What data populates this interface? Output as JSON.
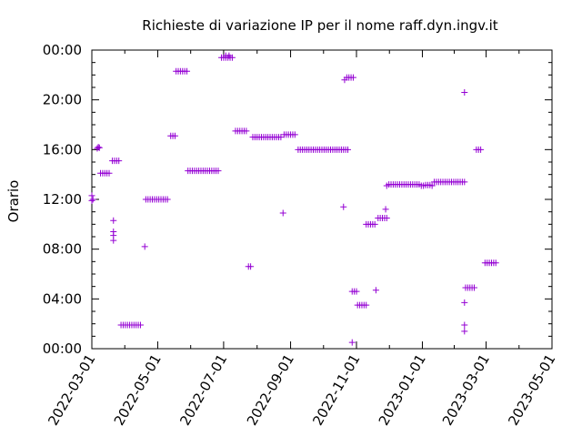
{
  "chart_data": {
    "type": "scatter",
    "title": "Richieste di variazione IP per il nome raff.dyn.ingv.it",
    "xlabel": "",
    "ylabel": "Orario",
    "x_axis_type": "date",
    "xlim": [
      "2022-03-01",
      "2023-05-01"
    ],
    "ylim": [
      0,
      24
    ],
    "x_ticks": [
      "2022-03-01",
      "2022-05-01",
      "2022-07-01",
      "2022-09-01",
      "2022-11-01",
      "2023-01-01",
      "2023-03-01",
      "2023-05-01"
    ],
    "y_ticks": [
      {
        "value": 0,
        "label": "00:00"
      },
      {
        "value": 4,
        "label": "04:00"
      },
      {
        "value": 8,
        "label": "08:00"
      },
      {
        "value": 12,
        "label": "12:00"
      },
      {
        "value": 16,
        "label": "16:00"
      },
      {
        "value": 20,
        "label": "20:00"
      },
      {
        "value": 24,
        "label": "00:00"
      }
    ],
    "minor_y_step": 1,
    "grid": false,
    "marker": "plus",
    "color": "#9400d3",
    "points": [
      {
        "x": "2022-03-01",
        "y": 12.3
      },
      {
        "x": "2022-03-01",
        "y": 11.9
      },
      {
        "x": "2022-03-02",
        "y": 12.0
      },
      {
        "x": "2022-03-06",
        "y": 16.1
      },
      {
        "x": "2022-03-07",
        "y": 16.2
      },
      {
        "x": "2022-03-08",
        "y": 16.15
      },
      {
        "x": "2022-03-09",
        "y": 14.1
      },
      {
        "x": "2022-03-11",
        "y": 14.1
      },
      {
        "x": "2022-03-13",
        "y": 14.1
      },
      {
        "x": "2022-03-15",
        "y": 14.1
      },
      {
        "x": "2022-03-17",
        "y": 14.1
      },
      {
        "x": "2022-03-20",
        "y": 15.1
      },
      {
        "x": "2022-03-22",
        "y": 15.1
      },
      {
        "x": "2022-03-24",
        "y": 15.1
      },
      {
        "x": "2022-03-26",
        "y": 15.1
      },
      {
        "x": "2022-03-21",
        "y": 10.3
      },
      {
        "x": "2022-03-21",
        "y": 9.4
      },
      {
        "x": "2022-03-21",
        "y": 9.1
      },
      {
        "x": "2022-03-21",
        "y": 8.7
      },
      {
        "x": "2022-03-28",
        "y": 1.9
      },
      {
        "x": "2022-03-30",
        "y": 1.9
      },
      {
        "x": "2022-04-01",
        "y": 1.9
      },
      {
        "x": "2022-04-03",
        "y": 1.9
      },
      {
        "x": "2022-04-05",
        "y": 1.9
      },
      {
        "x": "2022-04-07",
        "y": 1.9
      },
      {
        "x": "2022-04-09",
        "y": 1.9
      },
      {
        "x": "2022-04-11",
        "y": 1.9
      },
      {
        "x": "2022-04-13",
        "y": 1.9
      },
      {
        "x": "2022-04-15",
        "y": 1.9
      },
      {
        "x": "2022-04-19",
        "y": 8.2
      },
      {
        "x": "2022-04-20",
        "y": 12.0
      },
      {
        "x": "2022-04-22",
        "y": 12.0
      },
      {
        "x": "2022-04-24",
        "y": 12.0
      },
      {
        "x": "2022-04-26",
        "y": 12.0
      },
      {
        "x": "2022-04-28",
        "y": 12.0
      },
      {
        "x": "2022-04-30",
        "y": 12.0
      },
      {
        "x": "2022-05-02",
        "y": 12.0
      },
      {
        "x": "2022-05-04",
        "y": 12.0
      },
      {
        "x": "2022-05-06",
        "y": 12.0
      },
      {
        "x": "2022-05-08",
        "y": 12.0
      },
      {
        "x": "2022-05-10",
        "y": 12.0
      },
      {
        "x": "2022-05-13",
        "y": 17.1
      },
      {
        "x": "2022-05-15",
        "y": 17.1
      },
      {
        "x": "2022-05-17",
        "y": 17.1
      },
      {
        "x": "2022-05-18",
        "y": 22.3
      },
      {
        "x": "2022-05-20",
        "y": 22.3
      },
      {
        "x": "2022-05-22",
        "y": 22.3
      },
      {
        "x": "2022-05-24",
        "y": 22.3
      },
      {
        "x": "2022-05-26",
        "y": 22.3
      },
      {
        "x": "2022-05-28",
        "y": 22.3
      },
      {
        "x": "2022-05-29",
        "y": 14.3
      },
      {
        "x": "2022-05-31",
        "y": 14.3
      },
      {
        "x": "2022-06-02",
        "y": 14.3
      },
      {
        "x": "2022-06-04",
        "y": 14.3
      },
      {
        "x": "2022-06-06",
        "y": 14.3
      },
      {
        "x": "2022-06-08",
        "y": 14.3
      },
      {
        "x": "2022-06-10",
        "y": 14.3
      },
      {
        "x": "2022-06-12",
        "y": 14.3
      },
      {
        "x": "2022-06-14",
        "y": 14.3
      },
      {
        "x": "2022-06-16",
        "y": 14.3
      },
      {
        "x": "2022-06-18",
        "y": 14.3
      },
      {
        "x": "2022-06-20",
        "y": 14.3
      },
      {
        "x": "2022-06-22",
        "y": 14.3
      },
      {
        "x": "2022-06-24",
        "y": 14.3
      },
      {
        "x": "2022-06-26",
        "y": 14.3
      },
      {
        "x": "2022-06-29",
        "y": 23.4
      },
      {
        "x": "2022-07-01",
        "y": 23.4
      },
      {
        "x": "2022-07-03",
        "y": 23.4
      },
      {
        "x": "2022-07-05",
        "y": 23.4
      },
      {
        "x": "2022-07-07",
        "y": 23.4
      },
      {
        "x": "2022-07-09",
        "y": 23.4
      },
      {
        "x": "2022-07-03",
        "y": 23.55
      },
      {
        "x": "2022-07-06",
        "y": 23.55
      },
      {
        "x": "2022-07-12",
        "y": 17.5
      },
      {
        "x": "2022-07-14",
        "y": 17.5
      },
      {
        "x": "2022-07-16",
        "y": 17.5
      },
      {
        "x": "2022-07-18",
        "y": 17.5
      },
      {
        "x": "2022-07-20",
        "y": 17.5
      },
      {
        "x": "2022-07-22",
        "y": 17.5
      },
      {
        "x": "2022-07-24",
        "y": 6.6
      },
      {
        "x": "2022-07-26",
        "y": 6.6
      },
      {
        "x": "2022-07-28",
        "y": 17.0
      },
      {
        "x": "2022-07-30",
        "y": 17.0
      },
      {
        "x": "2022-08-01",
        "y": 17.0
      },
      {
        "x": "2022-08-03",
        "y": 17.0
      },
      {
        "x": "2022-08-05",
        "y": 17.0
      },
      {
        "x": "2022-08-07",
        "y": 17.0
      },
      {
        "x": "2022-08-09",
        "y": 17.0
      },
      {
        "x": "2022-08-11",
        "y": 17.0
      },
      {
        "x": "2022-08-13",
        "y": 17.0
      },
      {
        "x": "2022-08-15",
        "y": 17.0
      },
      {
        "x": "2022-08-17",
        "y": 17.0
      },
      {
        "x": "2022-08-19",
        "y": 17.0
      },
      {
        "x": "2022-08-21",
        "y": 17.0
      },
      {
        "x": "2022-08-23",
        "y": 17.0
      },
      {
        "x": "2022-08-25",
        "y": 10.9
      },
      {
        "x": "2022-08-26",
        "y": 17.2
      },
      {
        "x": "2022-08-28",
        "y": 17.2
      },
      {
        "x": "2022-08-30",
        "y": 17.2
      },
      {
        "x": "2022-09-01",
        "y": 17.2
      },
      {
        "x": "2022-09-03",
        "y": 17.2
      },
      {
        "x": "2022-09-05",
        "y": 17.2
      },
      {
        "x": "2022-09-08",
        "y": 16.0
      },
      {
        "x": "2022-09-10",
        "y": 16.0
      },
      {
        "x": "2022-09-12",
        "y": 16.0
      },
      {
        "x": "2022-09-14",
        "y": 16.0
      },
      {
        "x": "2022-09-16",
        "y": 16.0
      },
      {
        "x": "2022-09-18",
        "y": 16.0
      },
      {
        "x": "2022-09-20",
        "y": 16.0
      },
      {
        "x": "2022-09-22",
        "y": 16.0
      },
      {
        "x": "2022-09-24",
        "y": 16.0
      },
      {
        "x": "2022-09-26",
        "y": 16.0
      },
      {
        "x": "2022-09-28",
        "y": 16.0
      },
      {
        "x": "2022-09-30",
        "y": 16.0
      },
      {
        "x": "2022-10-02",
        "y": 16.0
      },
      {
        "x": "2022-10-04",
        "y": 16.0
      },
      {
        "x": "2022-10-06",
        "y": 16.0
      },
      {
        "x": "2022-10-08",
        "y": 16.0
      },
      {
        "x": "2022-10-10",
        "y": 16.0
      },
      {
        "x": "2022-10-12",
        "y": 16.0
      },
      {
        "x": "2022-10-14",
        "y": 16.0
      },
      {
        "x": "2022-10-16",
        "y": 16.0
      },
      {
        "x": "2022-10-18",
        "y": 16.0
      },
      {
        "x": "2022-10-20",
        "y": 16.0
      },
      {
        "x": "2022-10-22",
        "y": 16.0
      },
      {
        "x": "2022-10-24",
        "y": 16.0
      },
      {
        "x": "2022-10-20",
        "y": 11.4
      },
      {
        "x": "2022-10-21",
        "y": 21.6
      },
      {
        "x": "2022-10-23",
        "y": 21.8
      },
      {
        "x": "2022-10-25",
        "y": 21.8
      },
      {
        "x": "2022-10-27",
        "y": 21.8
      },
      {
        "x": "2022-10-29",
        "y": 21.8
      },
      {
        "x": "2022-10-28",
        "y": 0.5
      },
      {
        "x": "2022-10-28",
        "y": 4.6
      },
      {
        "x": "2022-10-30",
        "y": 4.6
      },
      {
        "x": "2022-11-01",
        "y": 4.6
      },
      {
        "x": "2022-11-02",
        "y": 3.5
      },
      {
        "x": "2022-11-04",
        "y": 3.5
      },
      {
        "x": "2022-11-06",
        "y": 3.5
      },
      {
        "x": "2022-11-08",
        "y": 3.5
      },
      {
        "x": "2022-11-10",
        "y": 3.5
      },
      {
        "x": "2022-11-10",
        "y": 10.0
      },
      {
        "x": "2022-11-12",
        "y": 10.0
      },
      {
        "x": "2022-11-14",
        "y": 10.0
      },
      {
        "x": "2022-11-16",
        "y": 10.0
      },
      {
        "x": "2022-11-18",
        "y": 10.0
      },
      {
        "x": "2022-11-19",
        "y": 4.7
      },
      {
        "x": "2022-11-21",
        "y": 10.5
      },
      {
        "x": "2022-11-23",
        "y": 10.5
      },
      {
        "x": "2022-11-25",
        "y": 10.5
      },
      {
        "x": "2022-11-27",
        "y": 10.5
      },
      {
        "x": "2022-11-29",
        "y": 10.5
      },
      {
        "x": "2022-11-28",
        "y": 11.2
      },
      {
        "x": "2022-11-29",
        "y": 13.1
      },
      {
        "x": "2022-12-01",
        "y": 13.2
      },
      {
        "x": "2022-12-03",
        "y": 13.2
      },
      {
        "x": "2022-12-05",
        "y": 13.2
      },
      {
        "x": "2022-12-07",
        "y": 13.2
      },
      {
        "x": "2022-12-09",
        "y": 13.2
      },
      {
        "x": "2022-12-11",
        "y": 13.2
      },
      {
        "x": "2022-12-13",
        "y": 13.2
      },
      {
        "x": "2022-12-15",
        "y": 13.2
      },
      {
        "x": "2022-12-17",
        "y": 13.2
      },
      {
        "x": "2022-12-19",
        "y": 13.2
      },
      {
        "x": "2022-12-21",
        "y": 13.2
      },
      {
        "x": "2022-12-23",
        "y": 13.2
      },
      {
        "x": "2022-12-25",
        "y": 13.2
      },
      {
        "x": "2022-12-27",
        "y": 13.2
      },
      {
        "x": "2022-12-29",
        "y": 13.2
      },
      {
        "x": "2022-12-31",
        "y": 13.1
      },
      {
        "x": "2023-01-02",
        "y": 13.1
      },
      {
        "x": "2023-01-04",
        "y": 13.15
      },
      {
        "x": "2023-01-06",
        "y": 13.15
      },
      {
        "x": "2023-01-08",
        "y": 13.15
      },
      {
        "x": "2023-01-10",
        "y": 13.1
      },
      {
        "x": "2023-01-12",
        "y": 13.4
      },
      {
        "x": "2023-01-14",
        "y": 13.4
      },
      {
        "x": "2023-01-16",
        "y": 13.4
      },
      {
        "x": "2023-01-18",
        "y": 13.4
      },
      {
        "x": "2023-01-20",
        "y": 13.4
      },
      {
        "x": "2023-01-22",
        "y": 13.4
      },
      {
        "x": "2023-01-24",
        "y": 13.4
      },
      {
        "x": "2023-01-26",
        "y": 13.4
      },
      {
        "x": "2023-01-28",
        "y": 13.4
      },
      {
        "x": "2023-01-30",
        "y": 13.4
      },
      {
        "x": "2023-02-01",
        "y": 13.4
      },
      {
        "x": "2023-02-03",
        "y": 13.4
      },
      {
        "x": "2023-02-05",
        "y": 13.4
      },
      {
        "x": "2023-02-07",
        "y": 13.4
      },
      {
        "x": "2023-02-09",
        "y": 13.4
      },
      {
        "x": "2023-02-09",
        "y": 20.6
      },
      {
        "x": "2023-02-09",
        "y": 3.7
      },
      {
        "x": "2023-02-09",
        "y": 1.9
      },
      {
        "x": "2023-02-09",
        "y": 1.4
      },
      {
        "x": "2023-02-10",
        "y": 4.9
      },
      {
        "x": "2023-02-12",
        "y": 4.9
      },
      {
        "x": "2023-02-14",
        "y": 4.9
      },
      {
        "x": "2023-02-16",
        "y": 4.9
      },
      {
        "x": "2023-02-18",
        "y": 4.9
      },
      {
        "x": "2023-02-20",
        "y": 16.0
      },
      {
        "x": "2023-02-22",
        "y": 16.0
      },
      {
        "x": "2023-02-24",
        "y": 16.0
      },
      {
        "x": "2023-02-28",
        "y": 6.9
      },
      {
        "x": "2023-03-02",
        "y": 6.9
      },
      {
        "x": "2023-03-04",
        "y": 6.9
      },
      {
        "x": "2023-03-06",
        "y": 6.9
      },
      {
        "x": "2023-03-08",
        "y": 6.9
      },
      {
        "x": "2023-03-10",
        "y": 6.9
      }
    ]
  }
}
